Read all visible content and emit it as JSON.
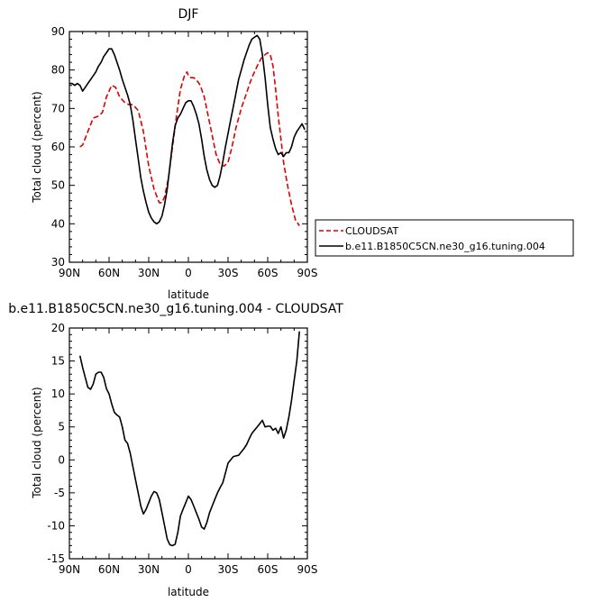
{
  "chart_data": [
    {
      "type": "line",
      "title": "DJF",
      "xlabel": "latitude",
      "ylabel": "Total cloud (percent)",
      "xlim": [
        90,
        -90
      ],
      "ylim": [
        30,
        90
      ],
      "xticks": [
        {
          "value": 90,
          "label": "90N"
        },
        {
          "value": 60,
          "label": "60N"
        },
        {
          "value": 30,
          "label": "30N"
        },
        {
          "value": 0,
          "label": "0"
        },
        {
          "value": -30,
          "label": "30S"
        },
        {
          "value": -60,
          "label": "60S"
        },
        {
          "value": -90,
          "label": "90S"
        }
      ],
      "yticks": [
        30,
        40,
        50,
        60,
        70,
        80,
        90
      ],
      "grid": false,
      "legend_position": "right-bottom-outside",
      "series": [
        {
          "name": "CLOUDSAT",
          "color": "#e00000",
          "style": "dashed",
          "x": [
            82,
            80,
            76,
            72,
            68,
            65,
            62,
            58,
            55,
            52,
            48,
            45,
            42,
            38,
            34,
            30,
            26,
            22,
            20,
            18,
            15,
            12,
            9,
            6,
            3,
            1,
            0,
            -2,
            -4,
            -6,
            -9,
            -12,
            -15,
            -18,
            -21,
            -24,
            -27,
            -30,
            -33,
            -36,
            -40,
            -44,
            -48,
            -52,
            -55,
            -58,
            -60,
            -62,
            -64,
            -66,
            -68,
            -70,
            -72,
            -75,
            -78,
            -81,
            -84
          ],
          "y": [
            60,
            60.5,
            64,
            67.5,
            68,
            69,
            73,
            76,
            75.5,
            73,
            71.5,
            71,
            71,
            69.5,
            64,
            55,
            49,
            45.5,
            45.5,
            47,
            52,
            60,
            68,
            75,
            78.5,
            79.5,
            78.5,
            78,
            78,
            77.5,
            76,
            73,
            68,
            63,
            58,
            55.5,
            55,
            56,
            60,
            65,
            70,
            74,
            78,
            81,
            83,
            84,
            84.5,
            84,
            81,
            75,
            68,
            62,
            56,
            50,
            45,
            41,
            39.5
          ]
        },
        {
          "name": "b.e11.B1850C5CN.ne30_g16.tuning.004",
          "color": "#000000",
          "style": "solid",
          "x": [
            90,
            88,
            86,
            84,
            82,
            80,
            78,
            76,
            74,
            72,
            70,
            68,
            66,
            64,
            62,
            60,
            58,
            56,
            54,
            52,
            50,
            48,
            46,
            44,
            42,
            40,
            38,
            36,
            34,
            32,
            30,
            28,
            26,
            24,
            22,
            20,
            18,
            16,
            14,
            12,
            10,
            8,
            6,
            4,
            2,
            0,
            -2,
            -4,
            -6,
            -8,
            -10,
            -12,
            -14,
            -16,
            -18,
            -20,
            -22,
            -24,
            -26,
            -28,
            -30,
            -32,
            -34,
            -36,
            -38,
            -40,
            -42,
            -44,
            -46,
            -48,
            -50,
            -52,
            -54,
            -56,
            -58,
            -60,
            -62,
            -64,
            -66,
            -68,
            -70,
            -72,
            -74,
            -76,
            -78,
            -80,
            -82,
            -84,
            -86,
            -88
          ],
          "y": [
            76.5,
            76.5,
            76,
            76.5,
            76,
            74.5,
            75.5,
            76.5,
            77.5,
            78.5,
            79.5,
            81,
            82,
            83.5,
            84.5,
            85.5,
            85.5,
            84,
            82,
            80,
            77.5,
            75.5,
            73.5,
            71,
            67,
            62,
            57,
            52,
            48.5,
            45.5,
            43,
            41.5,
            40.5,
            40,
            40.5,
            42,
            45,
            49,
            55,
            61,
            65.5,
            67.5,
            68.5,
            70,
            71.5,
            72,
            72,
            70.5,
            68.5,
            66,
            62,
            57.5,
            54,
            51.5,
            50,
            49.5,
            50,
            52.5,
            56,
            60,
            63.5,
            67,
            70.5,
            74,
            77.5,
            80,
            82.5,
            84.5,
            86.5,
            88,
            88.5,
            89,
            88,
            84,
            78,
            71,
            65,
            62,
            59.5,
            58,
            58.5,
            57.5,
            58.5,
            58.5,
            60,
            62.5,
            64,
            65,
            66,
            64.5
          ]
        }
      ]
    },
    {
      "type": "line",
      "title": "b.e11.B1850C5CN.ne30_g16.tuning.004 - CLOUDSAT",
      "xlabel": "latitude",
      "ylabel": "Total cloud (percent)",
      "xlim": [
        90,
        -90
      ],
      "ylim": [
        -15,
        20
      ],
      "xticks": [
        {
          "value": 90,
          "label": "90N"
        },
        {
          "value": 60,
          "label": "60N"
        },
        {
          "value": 30,
          "label": "30N"
        },
        {
          "value": 0,
          "label": "0"
        },
        {
          "value": -30,
          "label": "30S"
        },
        {
          "value": -60,
          "label": "60S"
        },
        {
          "value": -90,
          "label": "90S"
        }
      ],
      "yticks": [
        -15,
        -10,
        -5,
        0,
        5,
        10,
        15,
        20
      ],
      "grid": false,
      "series": [
        {
          "color": "#000000",
          "style": "solid",
          "x": [
            82,
            80,
            78,
            76,
            74,
            72,
            70,
            68,
            66,
            64,
            62,
            60,
            58,
            56,
            54,
            52,
            50,
            48,
            46,
            44,
            42,
            40,
            38,
            36,
            34,
            32,
            30,
            28,
            26,
            24,
            22,
            20,
            18,
            16,
            14,
            12,
            10,
            8,
            6,
            4,
            2,
            0,
            -2,
            -4,
            -6,
            -8,
            -10,
            -12,
            -14,
            -16,
            -18,
            -20,
            -22,
            -24,
            -26,
            -28,
            -30,
            -32,
            -34,
            -36,
            -38,
            -40,
            -42,
            -44,
            -46,
            -48,
            -50,
            -52,
            -54,
            -56,
            -58,
            -60,
            -62,
            -64,
            -66,
            -68,
            -70,
            -72,
            -74,
            -76,
            -78,
            -80,
            -82,
            -84
          ],
          "y": [
            15.8,
            14,
            12.5,
            11,
            10.7,
            11.5,
            13,
            13.3,
            13.3,
            12.5,
            10.8,
            10,
            8.5,
            7.2,
            6.8,
            6.5,
            5,
            3,
            2.5,
            1,
            -1,
            -3,
            -5,
            -7,
            -8.2,
            -7.5,
            -6.5,
            -5.5,
            -4.8,
            -5,
            -6,
            -8,
            -10,
            -12,
            -12.9,
            -13,
            -12.8,
            -11,
            -8.5,
            -7.5,
            -6.5,
            -5.5,
            -6,
            -7,
            -8,
            -9,
            -10.2,
            -10.5,
            -9.5,
            -8,
            -7,
            -6,
            -5,
            -4.2,
            -3.5,
            -2,
            -0.5,
            0,
            0.5,
            0.6,
            0.7,
            1.2,
            1.7,
            2.3,
            3.2,
            4,
            4.5,
            5,
            5.5,
            6,
            5,
            5.1,
            5.1,
            4.5,
            4.8,
            4,
            5,
            3.3,
            4.5,
            6.5,
            9,
            12,
            15,
            19.5
          ]
        }
      ]
    }
  ]
}
